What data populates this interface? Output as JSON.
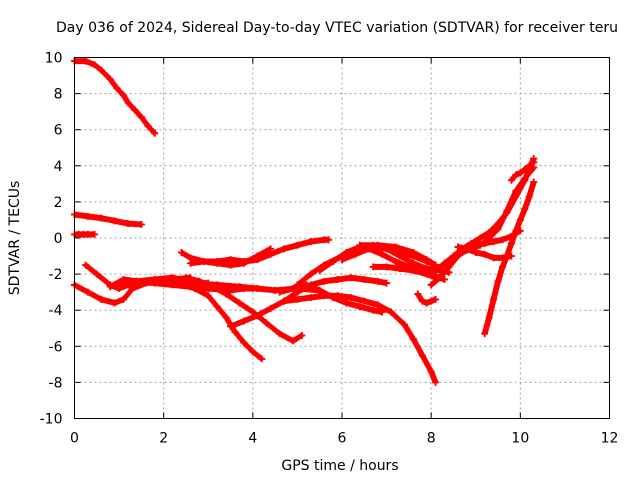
{
  "chart_data": {
    "type": "scatter",
    "title": "Day 036 of 2024, Sidereal Day-to-day VTEC variation (SDTVAR) for receiver teru",
    "xlabel": "GPS time / hours",
    "ylabel": "SDTVAR / TECUs",
    "xlim": [
      0,
      12
    ],
    "ylim": [
      -10,
      10
    ],
    "xticks": [
      0,
      2,
      4,
      6,
      8,
      10,
      12
    ],
    "yticks": [
      -10,
      -8,
      -6,
      -4,
      -2,
      0,
      2,
      4,
      6,
      8,
      10
    ],
    "grid": true,
    "marker": "+",
    "color": "#ff0000",
    "series": [
      {
        "name": "s1",
        "x": [
          0.0,
          0.25,
          0.45,
          0.6,
          0.8,
          0.95,
          1.1,
          1.2,
          1.35,
          1.5,
          1.65,
          1.8
        ],
        "y": [
          9.8,
          9.8,
          9.6,
          9.3,
          8.8,
          8.3,
          7.9,
          7.5,
          7.1,
          6.7,
          6.2,
          5.8
        ]
      },
      {
        "name": "s2",
        "x": [
          0.0,
          0.3,
          0.6,
          0.9,
          1.2,
          1.5
        ],
        "y": [
          1.3,
          1.2,
          1.1,
          0.95,
          0.8,
          0.75
        ]
      },
      {
        "name": "s3",
        "x": [
          0.0,
          0.1,
          0.2,
          0.3,
          0.45
        ],
        "y": [
          0.2,
          0.2,
          0.2,
          0.2,
          0.2
        ]
      },
      {
        "name": "s4",
        "x": [
          0.0,
          0.3,
          0.6,
          0.9,
          1.1,
          1.3,
          1.6,
          2.0,
          2.5,
          3.0
        ],
        "y": [
          -2.6,
          -3.0,
          -3.4,
          -3.6,
          -3.4,
          -2.8,
          -2.5,
          -2.4,
          -2.5,
          -2.5
        ]
      },
      {
        "name": "s5",
        "x": [
          0.25,
          0.5,
          0.8,
          1.0,
          1.2,
          1.5,
          1.8,
          2.2,
          2.6
        ],
        "y": [
          -1.5,
          -2.0,
          -2.6,
          -2.8,
          -2.6,
          -2.5,
          -2.4,
          -2.3,
          -2.2
        ]
      },
      {
        "name": "s6",
        "x": [
          0.8,
          1.1,
          1.4,
          1.8,
          2.2,
          2.6,
          3.0,
          3.5,
          3.8,
          4.0
        ],
        "y": [
          -2.7,
          -2.3,
          -2.4,
          -2.5,
          -2.6,
          -2.7,
          -2.8,
          -2.9,
          -2.8,
          -2.8
        ]
      },
      {
        "name": "s7",
        "x": [
          1.0,
          1.4,
          1.8,
          2.2,
          2.7,
          3.2,
          3.7,
          4.1,
          4.5,
          5.0,
          5.5
        ],
        "y": [
          -2.6,
          -2.4,
          -2.3,
          -2.2,
          -2.5,
          -2.6,
          -2.7,
          -2.8,
          -2.9,
          -2.8,
          -2.9
        ]
      },
      {
        "name": "s8",
        "x": [
          2.4,
          2.7,
          3.0,
          3.2,
          3.4,
          3.6,
          3.8,
          4.0,
          4.2
        ],
        "y": [
          -2.5,
          -2.8,
          -3.2,
          -3.8,
          -4.4,
          -5.2,
          -5.8,
          -6.3,
          -6.7
        ]
      },
      {
        "name": "s9",
        "x": [
          2.5,
          2.8,
          3.1,
          3.4,
          3.7,
          4.0,
          4.3,
          4.6,
          4.9,
          5.1
        ],
        "y": [
          -2.2,
          -2.4,
          -2.7,
          -3.1,
          -3.6,
          -4.1,
          -4.7,
          -5.3,
          -5.7,
          -5.4
        ]
      },
      {
        "name": "s10",
        "x": [
          2.4,
          2.6,
          2.9,
          3.2,
          3.5,
          3.8,
          4.1,
          4.4
        ],
        "y": [
          -0.8,
          -1.1,
          -1.3,
          -1.4,
          -1.5,
          -1.4,
          -1.0,
          -0.6
        ]
      },
      {
        "name": "s11",
        "x": [
          2.6,
          2.9,
          3.2,
          3.5,
          3.8,
          4.1,
          4.4,
          4.7,
          5.0,
          5.3,
          5.6,
          5.7
        ],
        "y": [
          -1.4,
          -1.3,
          -1.3,
          -1.2,
          -1.3,
          -1.2,
          -0.9,
          -0.6,
          -0.4,
          -0.2,
          -0.1,
          -0.1
        ]
      },
      {
        "name": "s12",
        "x": [
          3.5,
          3.8,
          4.1,
          4.4,
          4.7,
          5.0,
          5.3,
          5.6,
          5.9,
          6.2,
          6.5,
          6.8,
          7.0
        ],
        "y": [
          -4.9,
          -4.6,
          -4.3,
          -3.9,
          -3.5,
          -3.0,
          -2.6,
          -2.4,
          -2.3,
          -2.2,
          -2.3,
          -2.4,
          -2.5
        ]
      },
      {
        "name": "s13",
        "x": [
          4.7,
          5.0,
          5.3,
          5.6,
          5.9,
          6.2,
          6.5,
          6.8,
          7.1,
          7.4,
          7.6,
          7.8,
          8.0,
          8.1
        ],
        "y": [
          -3.5,
          -3.4,
          -3.3,
          -3.2,
          -3.2,
          -3.3,
          -3.5,
          -3.7,
          -4.1,
          -4.8,
          -5.6,
          -6.5,
          -7.4,
          -8.0
        ]
      },
      {
        "name": "s14",
        "x": [
          4.6,
          4.9,
          5.2,
          5.5,
          5.8,
          6.1,
          6.4,
          6.7,
          6.9
        ],
        "y": [
          -3.0,
          -2.8,
          -2.6,
          -2.9,
          -3.3,
          -3.6,
          -3.8,
          -4.0,
          -4.1
        ]
      },
      {
        "name": "s15",
        "x": [
          5.0,
          5.3,
          5.6,
          6.0,
          6.4,
          6.8,
          7.2,
          7.6,
          7.9,
          8.1
        ],
        "y": [
          -2.6,
          -2.0,
          -1.5,
          -1.0,
          -0.6,
          -0.5,
          -0.7,
          -1.0,
          -1.3,
          -1.5
        ]
      },
      {
        "name": "s16",
        "x": [
          5.5,
          5.8,
          6.1,
          6.4,
          6.8,
          7.2,
          7.6,
          7.9,
          8.1
        ],
        "y": [
          -1.8,
          -1.3,
          -0.8,
          -0.5,
          -0.4,
          -0.5,
          -0.8,
          -1.2,
          -1.5
        ]
      },
      {
        "name": "s17",
        "x": [
          6.0,
          6.3,
          6.6,
          6.9,
          7.2,
          7.5,
          7.8,
          8.0,
          8.2,
          8.3
        ],
        "y": [
          -1.2,
          -0.9,
          -0.6,
          -0.9,
          -1.3,
          -1.6,
          -1.8,
          -2.0,
          -2.2,
          -2.3
        ]
      },
      {
        "name": "s18",
        "x": [
          6.4,
          6.7,
          7.0,
          7.3,
          7.6,
          7.9,
          8.2,
          8.4
        ],
        "y": [
          -0.4,
          -0.4,
          -0.6,
          -1.0,
          -1.4,
          -1.7,
          -1.8,
          -1.9
        ]
      },
      {
        "name": "s19",
        "x": [
          6.7,
          7.0,
          7.3,
          7.6,
          7.9,
          8.1
        ],
        "y": [
          -1.6,
          -1.6,
          -1.7,
          -1.8,
          -2.0,
          -2.2
        ]
      },
      {
        "name": "s20",
        "x": [
          7.7,
          7.8,
          7.9,
          8.0,
          8.1
        ],
        "y": [
          -3.1,
          -3.5,
          -3.6,
          -3.5,
          -3.4
        ]
      },
      {
        "name": "s21",
        "x": [
          8.0,
          8.2,
          8.4,
          8.6,
          8.8,
          9.0,
          9.2,
          9.4,
          9.6,
          9.8,
          10.0
        ],
        "y": [
          -2.6,
          -2.2,
          -1.6,
          -1.0,
          -0.6,
          -0.4,
          -0.3,
          -0.2,
          -0.1,
          0.1,
          0.4
        ]
      },
      {
        "name": "s22",
        "x": [
          8.1,
          8.3,
          8.5,
          8.7,
          8.9,
          9.1,
          9.3,
          9.5,
          9.7,
          9.9,
          10.1,
          10.3
        ],
        "y": [
          -1.8,
          -1.4,
          -1.0,
          -0.6,
          -0.3,
          0.0,
          0.3,
          0.8,
          1.4,
          2.3,
          3.2,
          4.4
        ]
      },
      {
        "name": "s23",
        "x": [
          8.3,
          8.5,
          8.7,
          8.9,
          9.1,
          9.3,
          9.5,
          9.7,
          9.9,
          10.1,
          10.3
        ],
        "y": [
          -1.5,
          -1.1,
          -0.8,
          -0.6,
          -0.4,
          0.0,
          0.5,
          1.5,
          2.6,
          3.3,
          3.9
        ]
      },
      {
        "name": "s24",
        "x": [
          8.6,
          8.8,
          9.0,
          9.2,
          9.4,
          9.6,
          9.8
        ],
        "y": [
          -0.5,
          -0.6,
          -0.8,
          -0.9,
          -1.1,
          -1.1,
          -1.0
        ]
      },
      {
        "name": "s25",
        "x": [
          9.2,
          9.3,
          9.4,
          9.5,
          9.6,
          9.7,
          9.8,
          9.9,
          10.0,
          10.1,
          10.2,
          10.3
        ],
        "y": [
          -5.3,
          -4.4,
          -3.4,
          -2.4,
          -1.6,
          -1.0,
          -0.3,
          0.4,
          1.0,
          1.6,
          2.3,
          3.1
        ]
      },
      {
        "name": "s26",
        "x": [
          9.8,
          9.9,
          10.0,
          10.1,
          10.2,
          10.3
        ],
        "y": [
          3.2,
          3.5,
          3.6,
          3.8,
          4.0,
          4.2
        ]
      }
    ]
  }
}
